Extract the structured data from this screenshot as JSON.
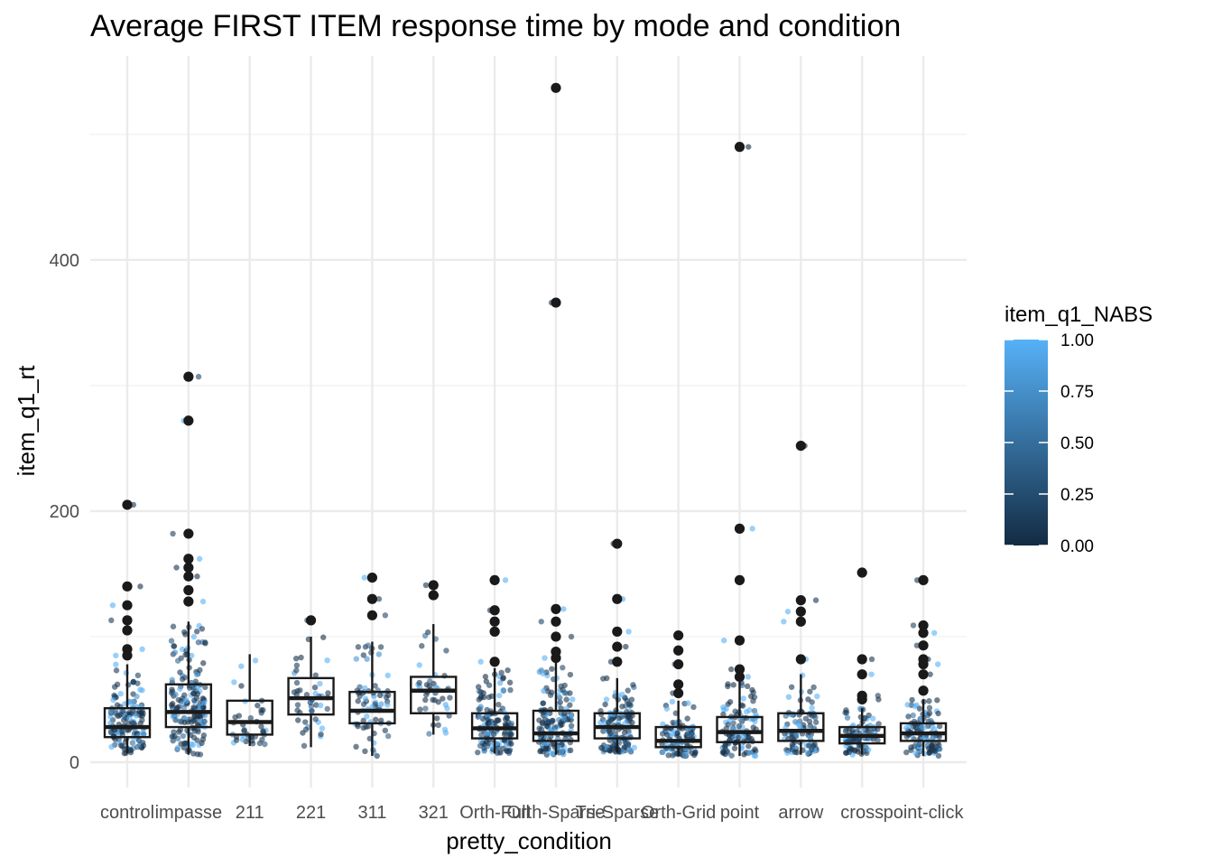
{
  "chart_data": {
    "type": "boxplot",
    "title": "Average FIRST ITEM response time by mode and condition",
    "xlabel": "pretty_condition",
    "ylabel": "item_q1_rt",
    "ylim": [
      -20,
      560
    ],
    "yticks": [
      0,
      200,
      400
    ],
    "grid": true,
    "categories": [
      "control",
      "impasse",
      "211",
      "221",
      "311",
      "321",
      "Orth-Full",
      "Orth-Sparse",
      "Tri-Sparse",
      "Orth-Grid",
      "point",
      "arrow",
      "cross",
      "point-click"
    ],
    "boxes": [
      {
        "category": "control",
        "q1": 20,
        "median": 28,
        "q3": 43,
        "whisker_low": 7,
        "whisker_high": 78,
        "outliers": [
          85,
          90,
          105,
          113,
          125,
          140,
          205
        ]
      },
      {
        "category": "impasse",
        "q1": 28,
        "median": 40,
        "q3": 62,
        "whisker_low": 6,
        "whisker_high": 112,
        "outliers": [
          128,
          137,
          148,
          155,
          162,
          182,
          272,
          307
        ]
      },
      {
        "category": "211",
        "q1": 22,
        "median": 32,
        "q3": 49,
        "whisker_low": 13,
        "whisker_high": 86,
        "outliers": []
      },
      {
        "category": "221",
        "q1": 38,
        "median": 51,
        "q3": 67,
        "whisker_low": 12,
        "whisker_high": 100,
        "outliers": [
          113
        ]
      },
      {
        "category": "311",
        "q1": 31,
        "median": 41,
        "q3": 56,
        "whisker_low": 5,
        "whisker_high": 96,
        "outliers": [
          117,
          130,
          147
        ]
      },
      {
        "category": "321",
        "q1": 39,
        "median": 57,
        "q3": 68,
        "whisker_low": 22,
        "whisker_high": 110,
        "outliers": [
          133,
          141
        ]
      },
      {
        "category": "Orth-Full",
        "q1": 19,
        "median": 27,
        "q3": 39,
        "whisker_low": 7,
        "whisker_high": 75,
        "outliers": [
          80,
          104,
          112,
          121,
          145
        ]
      },
      {
        "category": "Orth-Sparse",
        "q1": 17,
        "median": 23,
        "q3": 41,
        "whisker_low": 6,
        "whisker_high": 80,
        "outliers": [
          83,
          88,
          100,
          112,
          122,
          366,
          537
        ]
      },
      {
        "category": "Tri-Sparse",
        "q1": 19,
        "median": 28,
        "q3": 39,
        "whisker_low": 8,
        "whisker_high": 67,
        "outliers": [
          80,
          92,
          104,
          130,
          174
        ]
      },
      {
        "category": "Orth-Grid",
        "q1": 12,
        "median": 17,
        "q3": 28,
        "whisker_low": 5,
        "whisker_high": 49,
        "outliers": [
          55,
          62,
          78,
          89,
          101
        ]
      },
      {
        "category": "point",
        "q1": 16,
        "median": 24,
        "q3": 36,
        "whisker_low": 5,
        "whisker_high": 64,
        "outliers": [
          68,
          74,
          97,
          145,
          186,
          490
        ]
      },
      {
        "category": "arrow",
        "q1": 17,
        "median": 25,
        "q3": 39,
        "whisker_low": 6,
        "whisker_high": 70,
        "outliers": [
          82,
          112,
          120,
          129,
          252
        ]
      },
      {
        "category": "cross",
        "q1": 15,
        "median": 21,
        "q3": 28,
        "whisker_low": 6,
        "whisker_high": 43,
        "outliers": [
          50,
          53,
          70,
          82,
          151
        ]
      },
      {
        "category": "point-click",
        "q1": 17,
        "median": 23,
        "q3": 31,
        "whisker_low": 5,
        "whisker_high": 50,
        "outliers": [
          57,
          70,
          78,
          82,
          93,
          103,
          109,
          145
        ]
      }
    ],
    "points_per_category": [
      140,
      170,
      40,
      45,
      70,
      40,
      140,
      150,
      140,
      100,
      110,
      90,
      100,
      110
    ],
    "color_scale": {
      "name": "item_q1_NABS",
      "min_color": "#132B43",
      "max_color": "#56B1F7",
      "ticks": [
        "0.00",
        "0.25",
        "0.50",
        "0.75",
        "1.00"
      ]
    },
    "legend_placement": "right",
    "box_color": "#1a1a1a",
    "grid_color": "#ebebeb"
  }
}
